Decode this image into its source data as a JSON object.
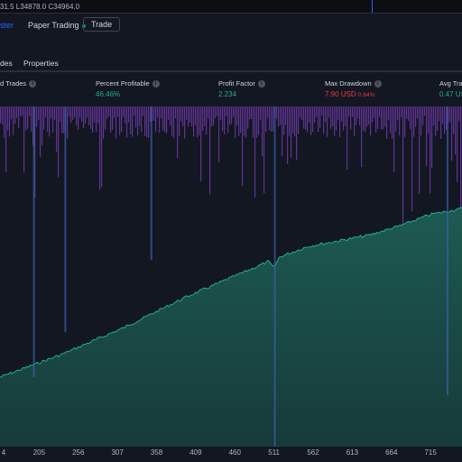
{
  "topbar": {
    "ohlc": "31.5  L34878.0  C34964.0"
  },
  "tabs": {
    "strategy_tester": "ster",
    "paper_trading": "Paper Trading",
    "trade": "Trade"
  },
  "subtabs": {
    "trades": "des",
    "properties": "Properties"
  },
  "metrics": {
    "closed_trades_label": "d Trades",
    "percent_profitable_label": "Percent Profitable",
    "percent_profitable_value": "46.46%",
    "profit_factor_label": "Profit Factor",
    "profit_factor_value": "2.234",
    "max_drawdown_label": "Max Drawdown",
    "max_drawdown_value": "7.90 USD",
    "max_drawdown_pct": "0.64%",
    "avg_trade_label": "Avg Trad",
    "avg_trade_value": "0.47 US"
  },
  "colors": {
    "background": "#131722",
    "equity_line": "#22ab94",
    "equity_fill": "#1a4a46",
    "drawdown_bars": "#7b3fb8",
    "positive": "#22ab94",
    "negative": "#f23645"
  },
  "chart_data": {
    "type": "area",
    "x_ticks": [
      "4",
      "205",
      "256",
      "307",
      "358",
      "409",
      "460",
      "511",
      "562",
      "613",
      "664",
      "715"
    ],
    "xlim": [
      154,
      756
    ],
    "series": [
      {
        "values": [
          0.0,
          0.06,
          0.12,
          0.19,
          0.26,
          0.34,
          0.42,
          0.49,
          0.56,
          0.63,
          0.69,
          0.72,
          0.75,
          0.8,
          0.86,
          0.89
        ]
      }
    ],
    "drawdown_series": {
      "deep_spikes_at_trade": [
        197,
        238,
        350,
        511,
        736
      ]
    }
  }
}
